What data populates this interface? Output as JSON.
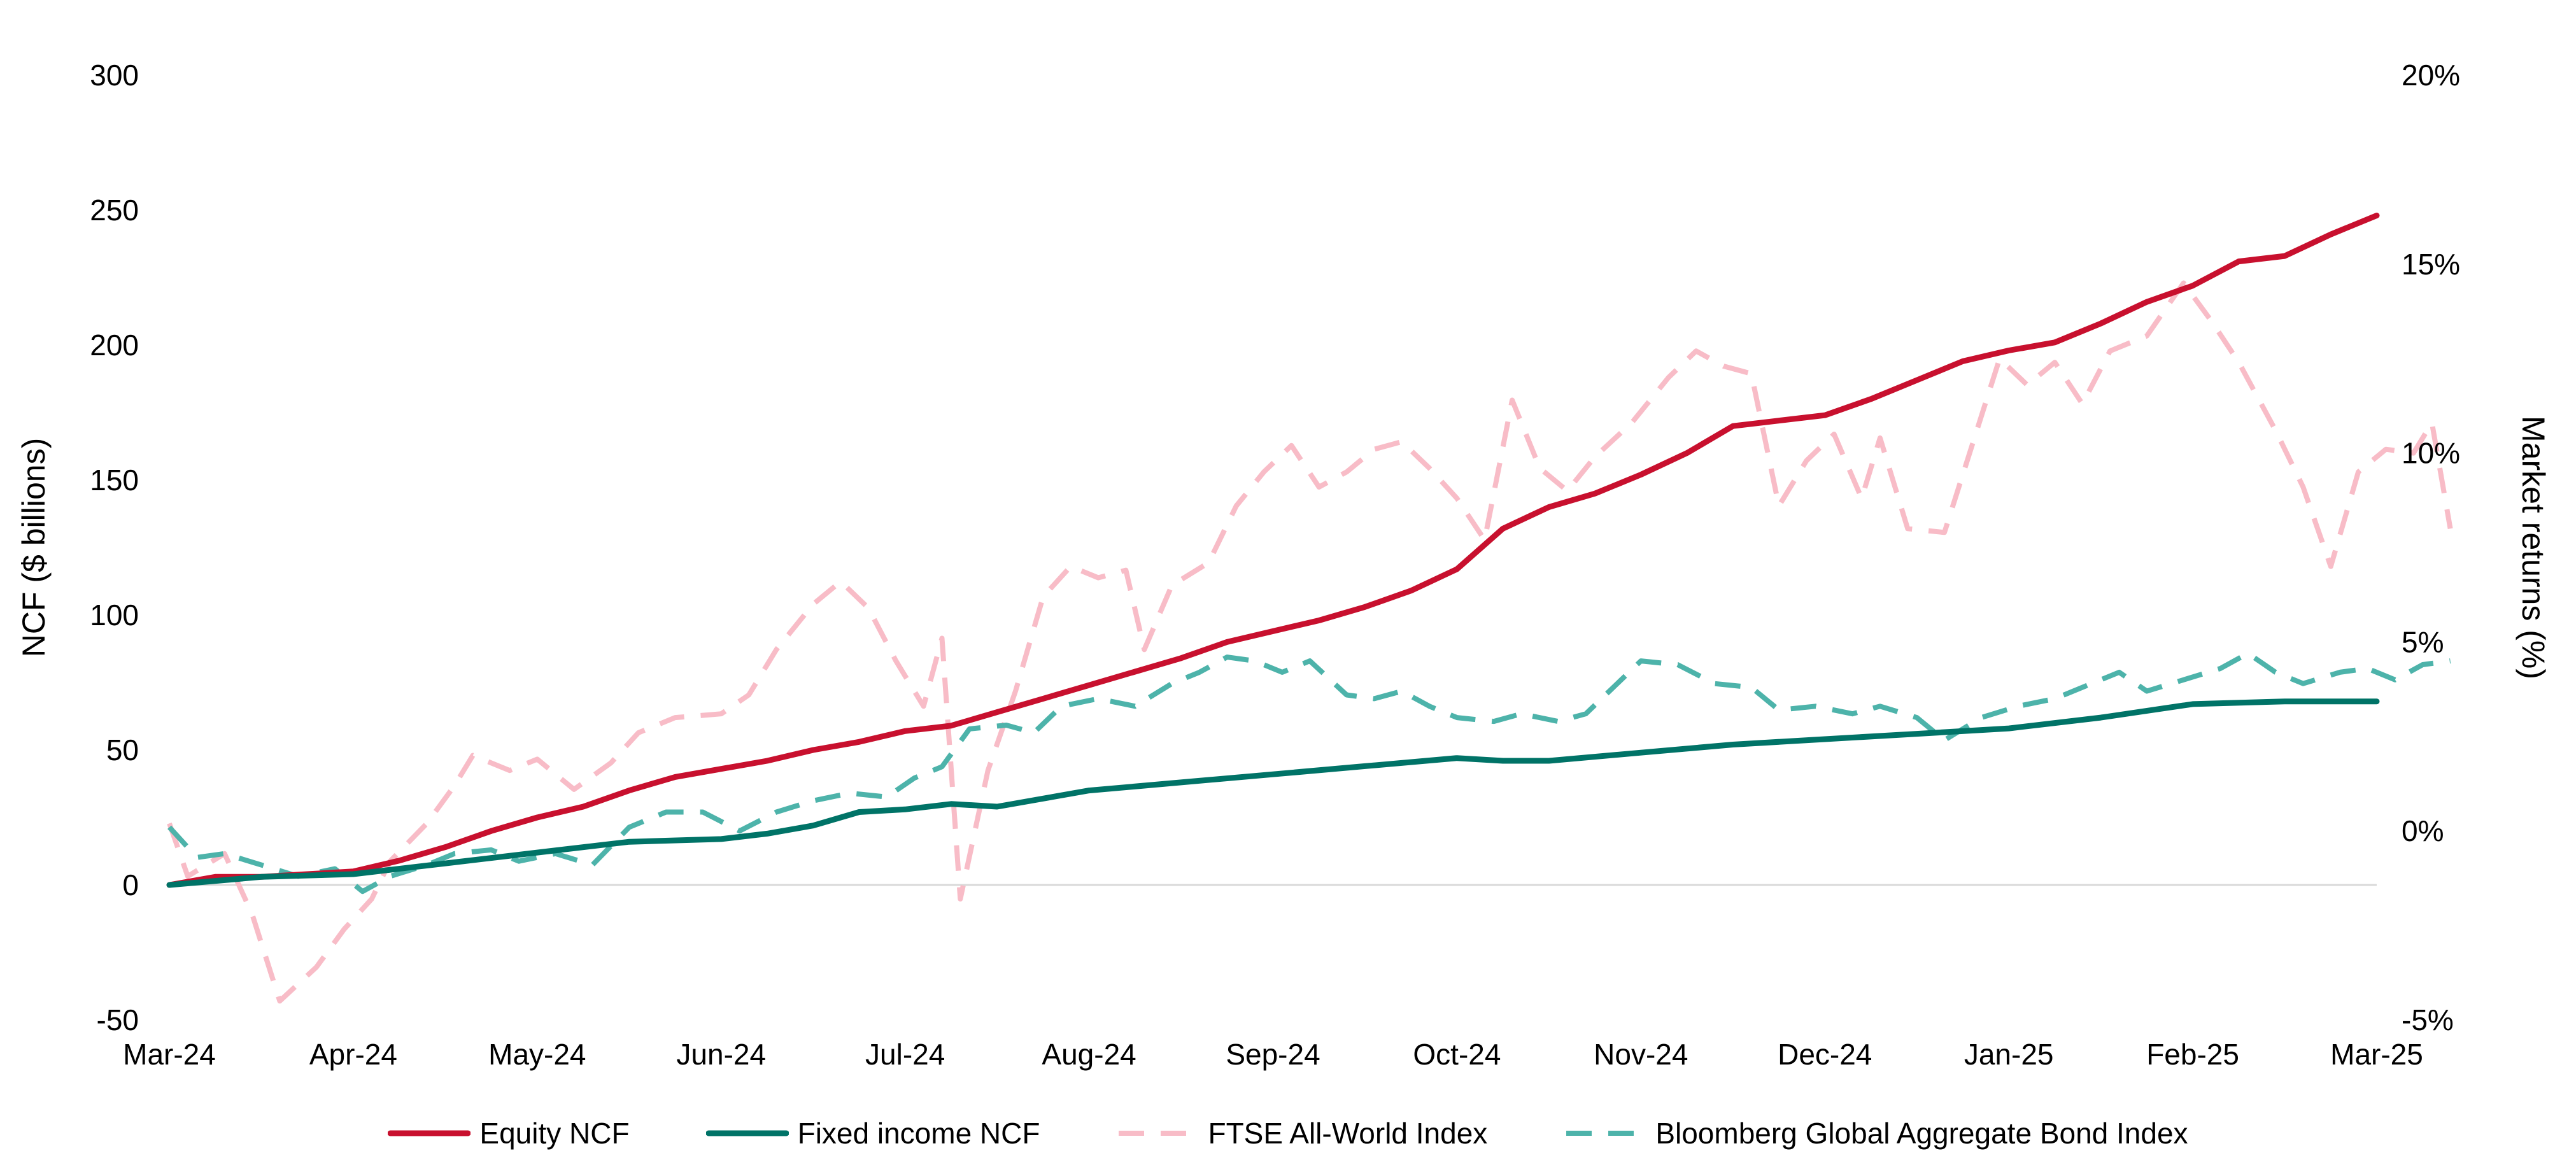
{
  "chart_data": {
    "type": "line",
    "title": "",
    "xlabel": "",
    "ylabel": "NCF ($ billions)",
    "y2label": "Market returns (%)",
    "ylim": [
      -50,
      300
    ],
    "y2lim": [
      -5,
      20
    ],
    "yticks": [
      "-50",
      "0",
      "50",
      "100",
      "150",
      "200",
      "250",
      "300"
    ],
    "y2ticks": [
      "-5%",
      "0%",
      "5%",
      "10%",
      "15%",
      "20%"
    ],
    "xticks": [
      "Mar-24",
      "Apr-24",
      "May-24",
      "Jun-24",
      "Jul-24",
      "Aug-24",
      "Sep-24",
      "Oct-24",
      "Nov-24",
      "Dec-24",
      "Jan-25",
      "Feb-25",
      "Mar-25"
    ],
    "grid": false,
    "legend_position": "bottom",
    "series": [
      {
        "name": "Equity NCF",
        "axis": "left",
        "style": "solid",
        "color": "#C8102E",
        "points": [
          [
            0,
            0
          ],
          [
            0.25,
            3
          ],
          [
            0.5,
            3
          ],
          [
            0.75,
            4
          ],
          [
            1,
            5
          ],
          [
            1.25,
            9
          ],
          [
            1.5,
            14
          ],
          [
            1.75,
            20
          ],
          [
            2,
            25
          ],
          [
            2.25,
            29
          ],
          [
            2.5,
            35
          ],
          [
            2.75,
            40
          ],
          [
            3,
            43
          ],
          [
            3.25,
            46
          ],
          [
            3.5,
            50
          ],
          [
            3.75,
            53
          ],
          [
            4,
            57
          ],
          [
            4.25,
            59
          ],
          [
            4.5,
            64
          ],
          [
            4.75,
            69
          ],
          [
            5,
            74
          ],
          [
            5.25,
            79
          ],
          [
            5.5,
            84
          ],
          [
            5.75,
            90
          ],
          [
            6,
            94
          ],
          [
            6.25,
            98
          ],
          [
            6.5,
            103
          ],
          [
            6.75,
            109
          ],
          [
            7,
            117
          ],
          [
            7.25,
            132
          ],
          [
            7.5,
            140
          ],
          [
            7.75,
            145
          ],
          [
            8,
            152
          ],
          [
            8.25,
            160
          ],
          [
            8.5,
            170
          ],
          [
            8.75,
            172
          ],
          [
            9,
            174
          ],
          [
            9.25,
            180
          ],
          [
            9.5,
            187
          ],
          [
            9.75,
            194
          ],
          [
            10,
            198
          ],
          [
            10.25,
            201
          ],
          [
            10.5,
            208
          ],
          [
            10.75,
            216
          ],
          [
            11,
            222
          ],
          [
            11.25,
            231
          ],
          [
            11.5,
            233
          ],
          [
            11.75,
            241
          ],
          [
            12,
            248
          ]
        ]
      },
      {
        "name": "Fixed income NCF",
        "axis": "left",
        "style": "solid",
        "color": "#007367",
        "points": [
          [
            0,
            0
          ],
          [
            0.5,
            3
          ],
          [
            1,
            4
          ],
          [
            1.5,
            8
          ],
          [
            2,
            12
          ],
          [
            2.5,
            16
          ],
          [
            3,
            17
          ],
          [
            3.25,
            19
          ],
          [
            3.5,
            22
          ],
          [
            3.75,
            27
          ],
          [
            4,
            28
          ],
          [
            4.25,
            30
          ],
          [
            4.5,
            29
          ],
          [
            4.75,
            32
          ],
          [
            5,
            35
          ],
          [
            5.5,
            38
          ],
          [
            6,
            41
          ],
          [
            6.5,
            44
          ],
          [
            7,
            47
          ],
          [
            7.25,
            46
          ],
          [
            7.5,
            46
          ],
          [
            8,
            49
          ],
          [
            8.5,
            52
          ],
          [
            9,
            54
          ],
          [
            9.5,
            56
          ],
          [
            10,
            58
          ],
          [
            10.5,
            62
          ],
          [
            11,
            67
          ],
          [
            11.5,
            68
          ],
          [
            12,
            68
          ]
        ]
      },
      {
        "name": "FTSE All-World Index",
        "axis": "right",
        "style": "dashed",
        "color": "#F8BCC7",
        "points": [
          [
            0,
            0.2
          ],
          [
            0.1,
            -1.2
          ],
          [
            0.3,
            -0.6
          ],
          [
            0.45,
            -2.2
          ],
          [
            0.6,
            -4.5
          ],
          [
            0.8,
            -3.6
          ],
          [
            0.95,
            -2.6
          ],
          [
            1.1,
            -1.8
          ],
          [
            1.2,
            -0.8
          ],
          [
            1.4,
            0.2
          ],
          [
            1.55,
            1.2
          ],
          [
            1.65,
            2.0
          ],
          [
            1.85,
            1.6
          ],
          [
            2.0,
            1.9
          ],
          [
            2.2,
            1.1
          ],
          [
            2.4,
            1.8
          ],
          [
            2.55,
            2.6
          ],
          [
            2.75,
            3.0
          ],
          [
            3.0,
            3.1
          ],
          [
            3.15,
            3.6
          ],
          [
            3.3,
            4.8
          ],
          [
            3.5,
            6.0
          ],
          [
            3.65,
            6.6
          ],
          [
            3.8,
            5.9
          ],
          [
            3.95,
            4.5
          ],
          [
            4.1,
            3.3
          ],
          [
            4.2,
            5.1
          ],
          [
            4.3,
            -1.8
          ],
          [
            4.45,
            1.6
          ],
          [
            4.6,
            3.7
          ],
          [
            4.75,
            6.2
          ],
          [
            4.9,
            7.0
          ],
          [
            5.05,
            6.7
          ],
          [
            5.2,
            6.9
          ],
          [
            5.3,
            4.8
          ],
          [
            5.45,
            6.5
          ],
          [
            5.65,
            7.1
          ],
          [
            5.8,
            8.6
          ],
          [
            5.95,
            9.5
          ],
          [
            6.1,
            10.2
          ],
          [
            6.25,
            9.1
          ],
          [
            6.4,
            9.5
          ],
          [
            6.55,
            10.1
          ],
          [
            6.7,
            10.3
          ],
          [
            6.85,
            9.6
          ],
          [
            7.0,
            8.8
          ],
          [
            7.15,
            7.7
          ],
          [
            7.3,
            11.4
          ],
          [
            7.45,
            9.6
          ],
          [
            7.6,
            9.0
          ],
          [
            7.75,
            9.9
          ],
          [
            7.95,
            10.8
          ],
          [
            8.15,
            12.0
          ],
          [
            8.3,
            12.7
          ],
          [
            8.45,
            12.3
          ],
          [
            8.6,
            12.1
          ],
          [
            8.75,
            8.6
          ],
          [
            8.9,
            9.8
          ],
          [
            9.05,
            10.5
          ],
          [
            9.2,
            8.8
          ],
          [
            9.3,
            10.4
          ],
          [
            9.45,
            8.0
          ],
          [
            9.65,
            7.9
          ],
          [
            9.8,
            10.2
          ],
          [
            9.95,
            12.5
          ],
          [
            10.1,
            11.8
          ],
          [
            10.25,
            12.4
          ],
          [
            10.4,
            11.3
          ],
          [
            10.55,
            12.7
          ],
          [
            10.75,
            13.1
          ],
          [
            10.95,
            14.5
          ],
          [
            11.1,
            13.5
          ],
          [
            11.25,
            12.4
          ],
          [
            11.45,
            10.6
          ],
          [
            11.6,
            9.1
          ],
          [
            11.75,
            7.0
          ],
          [
            11.9,
            9.5
          ],
          [
            12.05,
            10.1
          ],
          [
            12.2,
            10.0
          ],
          [
            12.3,
            10.8
          ],
          [
            12.4,
            8.0
          ]
        ]
      },
      {
        "name": "Bloomberg Global Aggregate Bond Index",
        "axis": "right",
        "style": "dashed",
        "color": "#4DB3AA",
        "points": [
          [
            0,
            0.1
          ],
          [
            0.15,
            -0.7
          ],
          [
            0.3,
            -0.6
          ],
          [
            0.5,
            -0.9
          ],
          [
            0.7,
            -1.2
          ],
          [
            0.9,
            -1.0
          ],
          [
            1.05,
            -1.6
          ],
          [
            1.2,
            -1.2
          ],
          [
            1.4,
            -0.9
          ],
          [
            1.55,
            -0.6
          ],
          [
            1.75,
            -0.5
          ],
          [
            1.9,
            -0.8
          ],
          [
            2.1,
            -0.6
          ],
          [
            2.3,
            -0.9
          ],
          [
            2.5,
            0.1
          ],
          [
            2.7,
            0.5
          ],
          [
            2.9,
            0.5
          ],
          [
            3.1,
            0.0
          ],
          [
            3.3,
            0.5
          ],
          [
            3.5,
            0.8
          ],
          [
            3.7,
            1.0
          ],
          [
            3.9,
            0.9
          ],
          [
            4.05,
            1.4
          ],
          [
            4.2,
            1.7
          ],
          [
            4.35,
            2.7
          ],
          [
            4.55,
            2.8
          ],
          [
            4.7,
            2.6
          ],
          [
            4.85,
            3.3
          ],
          [
            5.05,
            3.5
          ],
          [
            5.25,
            3.3
          ],
          [
            5.45,
            3.9
          ],
          [
            5.6,
            4.2
          ],
          [
            5.75,
            4.6
          ],
          [
            5.9,
            4.5
          ],
          [
            6.05,
            4.2
          ],
          [
            6.2,
            4.5
          ],
          [
            6.4,
            3.6
          ],
          [
            6.55,
            3.5
          ],
          [
            6.7,
            3.7
          ],
          [
            6.85,
            3.3
          ],
          [
            7.0,
            3.0
          ],
          [
            7.2,
            2.9
          ],
          [
            7.35,
            3.1
          ],
          [
            7.55,
            2.9
          ],
          [
            7.7,
            3.1
          ],
          [
            7.85,
            3.8
          ],
          [
            8.0,
            4.5
          ],
          [
            8.2,
            4.4
          ],
          [
            8.4,
            3.9
          ],
          [
            8.6,
            3.8
          ],
          [
            8.75,
            3.2
          ],
          [
            8.95,
            3.3
          ],
          [
            9.15,
            3.1
          ],
          [
            9.3,
            3.3
          ],
          [
            9.5,
            3.0
          ],
          [
            9.65,
            2.4
          ],
          [
            9.85,
            3.0
          ],
          [
            10.05,
            3.3
          ],
          [
            10.25,
            3.5
          ],
          [
            10.45,
            3.9
          ],
          [
            10.6,
            4.2
          ],
          [
            10.75,
            3.7
          ],
          [
            10.95,
            4.0
          ],
          [
            11.15,
            4.3
          ],
          [
            11.3,
            4.7
          ],
          [
            11.45,
            4.2
          ],
          [
            11.6,
            3.9
          ],
          [
            11.8,
            4.2
          ],
          [
            11.95,
            4.3
          ],
          [
            12.1,
            4.0
          ],
          [
            12.25,
            4.4
          ],
          [
            12.4,
            4.5
          ]
        ]
      }
    ]
  }
}
